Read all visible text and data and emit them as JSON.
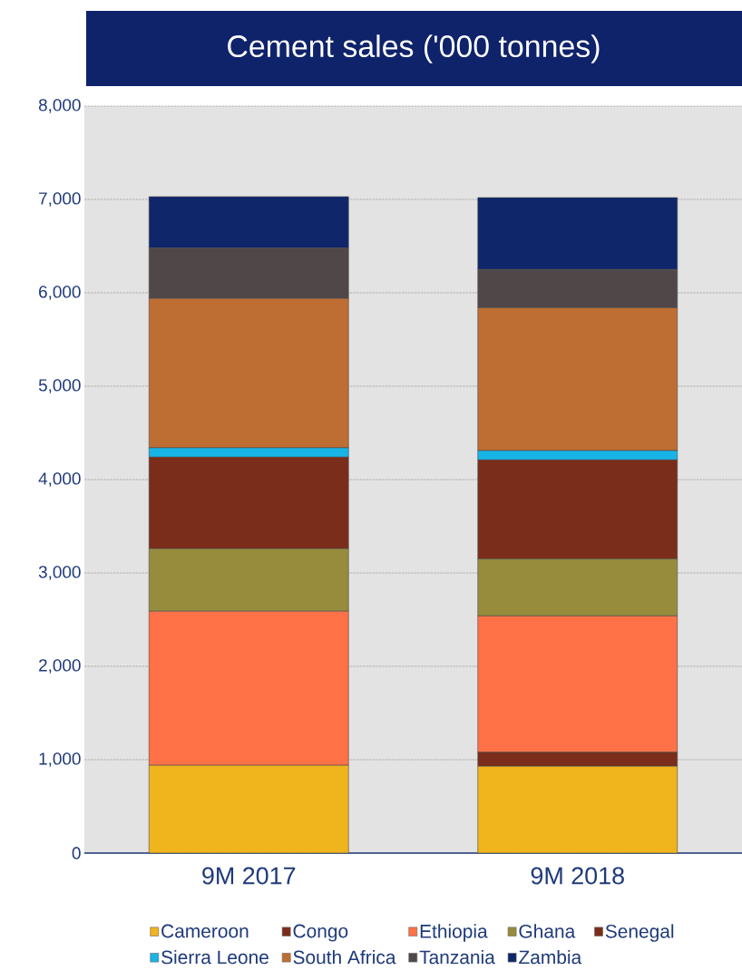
{
  "chart_data": {
    "type": "bar",
    "stacked": true,
    "title": "Cement sales ('000 tonnes)",
    "categories": [
      "9M 2017",
      "9M 2018"
    ],
    "series": [
      {
        "name": "Cameroon",
        "color": "#f0b41c",
        "values": [
          940,
          930
        ]
      },
      {
        "name": "Congo",
        "color": "#7a2d1a",
        "values": [
          0,
          150
        ]
      },
      {
        "name": "Ethiopia",
        "color": "#ff7147",
        "values": [
          1650,
          1460
        ]
      },
      {
        "name": "Ghana",
        "color": "#968c3c",
        "values": [
          670,
          610
        ]
      },
      {
        "name": "Senegal",
        "color": "#7a2d1a",
        "values": [
          980,
          1060
        ]
      },
      {
        "name": "Sierra Leone",
        "color": "#18b4e8",
        "values": [
          100,
          100
        ]
      },
      {
        "name": "South Africa",
        "color": "#be6e32",
        "values": [
          1600,
          1530
        ]
      },
      {
        "name": "Tanzania",
        "color": "#504848",
        "values": [
          540,
          410
        ]
      },
      {
        "name": "Zambia",
        "color": "#0f266b",
        "values": [
          550,
          770
        ]
      }
    ],
    "ylim": [
      0,
      8000
    ],
    "yticks": [
      0,
      {
        "value": 1000,
        "label": "1,000"
      },
      {
        "value": 2000,
        "label": "2,000"
      },
      {
        "value": 3000,
        "label": "3,000"
      },
      {
        "value": 4000,
        "label": "4,000"
      },
      {
        "value": 5000,
        "label": "5,000"
      },
      {
        "value": 6000,
        "label": "6,000"
      },
      {
        "value": 7000,
        "label": "7,000"
      },
      {
        "value": 8000,
        "label": "8,000"
      }
    ],
    "grid": "y",
    "legend": "bottom"
  }
}
